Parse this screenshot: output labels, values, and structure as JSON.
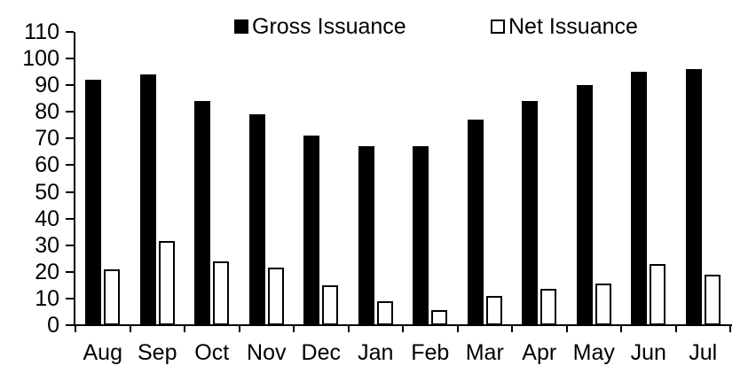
{
  "chart_data": {
    "type": "bar",
    "title": "",
    "xlabel": "",
    "ylabel": "",
    "categories": [
      "Aug",
      "Sep",
      "Oct",
      "Nov",
      "Dec",
      "Jan",
      "Feb",
      "Mar",
      "Apr",
      "May",
      "Jun",
      "Jul"
    ],
    "series": [
      {
        "name": "Gross Issuance",
        "swatch": "filled",
        "fill": "#000000",
        "values": [
          92,
          94,
          84,
          79,
          71,
          67,
          67,
          77,
          84,
          90,
          95,
          96
        ]
      },
      {
        "name": "Net Issuance",
        "swatch": "open",
        "fill": "#ffffff",
        "values": [
          21,
          31.5,
          24,
          21.5,
          15,
          9,
          5.5,
          11,
          13.5,
          15.5,
          23,
          19
        ]
      }
    ],
    "ylim": [
      0,
      110
    ],
    "yticks": [
      0,
      10,
      20,
      30,
      40,
      50,
      60,
      70,
      80,
      90,
      100,
      110
    ],
    "grid": false,
    "legend_position": "top"
  },
  "colors": {
    "background": "#ffffff",
    "axis": "#000000",
    "text": "#000000",
    "gross_bar": "#000000",
    "net_bar_fill": "#ffffff",
    "net_bar_outline": "#000000"
  }
}
